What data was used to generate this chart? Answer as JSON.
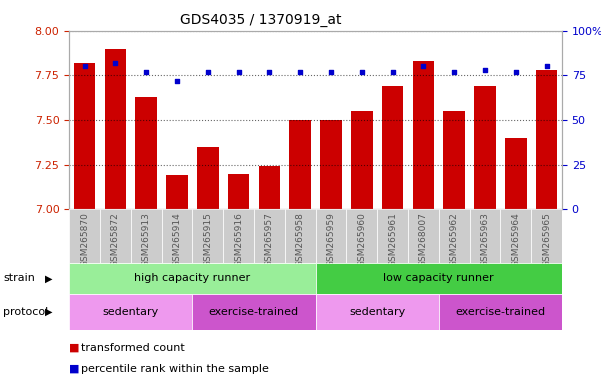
{
  "title": "GDS4035 / 1370919_at",
  "samples": [
    "GSM265870",
    "GSM265872",
    "GSM265913",
    "GSM265914",
    "GSM265915",
    "GSM265916",
    "GSM265957",
    "GSM265958",
    "GSM265959",
    "GSM265960",
    "GSM265961",
    "GSM268007",
    "GSM265962",
    "GSM265963",
    "GSM265964",
    "GSM265965"
  ],
  "transformed_count": [
    7.82,
    7.9,
    7.63,
    7.19,
    7.35,
    7.2,
    7.24,
    7.5,
    7.5,
    7.55,
    7.69,
    7.83,
    7.55,
    7.69,
    7.4,
    7.78
  ],
  "percentile_rank": [
    80,
    82,
    77,
    72,
    77,
    77,
    77,
    77,
    77,
    77,
    77,
    80,
    77,
    78,
    77,
    80
  ],
  "ylim_left": [
    7.0,
    8.0
  ],
  "ylim_right": [
    0,
    100
  ],
  "yticks_left": [
    7.0,
    7.25,
    7.5,
    7.75,
    8.0
  ],
  "yticks_right": [
    0,
    25,
    50,
    75,
    100
  ],
  "bar_color": "#cc0000",
  "dot_color": "#0000cc",
  "grid_color": "#000000",
  "strain_labels": [
    {
      "label": "high capacity runner",
      "start": 0,
      "end": 8,
      "color": "#99ee99"
    },
    {
      "label": "low capacity runner",
      "start": 8,
      "end": 16,
      "color": "#44cc44"
    }
  ],
  "protocol_labels": [
    {
      "label": "sedentary",
      "start": 0,
      "end": 4,
      "color": "#ee99ee"
    },
    {
      "label": "exercise-trained",
      "start": 4,
      "end": 8,
      "color": "#cc55cc"
    },
    {
      "label": "sedentary",
      "start": 8,
      "end": 12,
      "color": "#ee99ee"
    },
    {
      "label": "exercise-trained",
      "start": 12,
      "end": 16,
      "color": "#cc55cc"
    }
  ],
  "legend_items": [
    {
      "label": "transformed count",
      "color": "#cc0000"
    },
    {
      "label": "percentile rank within the sample",
      "color": "#0000cc"
    }
  ],
  "tick_label_color": "#555555",
  "axis_label_color_left": "#cc2200",
  "axis_label_color_right": "#0000cc",
  "xtick_bg_color": "#cccccc"
}
